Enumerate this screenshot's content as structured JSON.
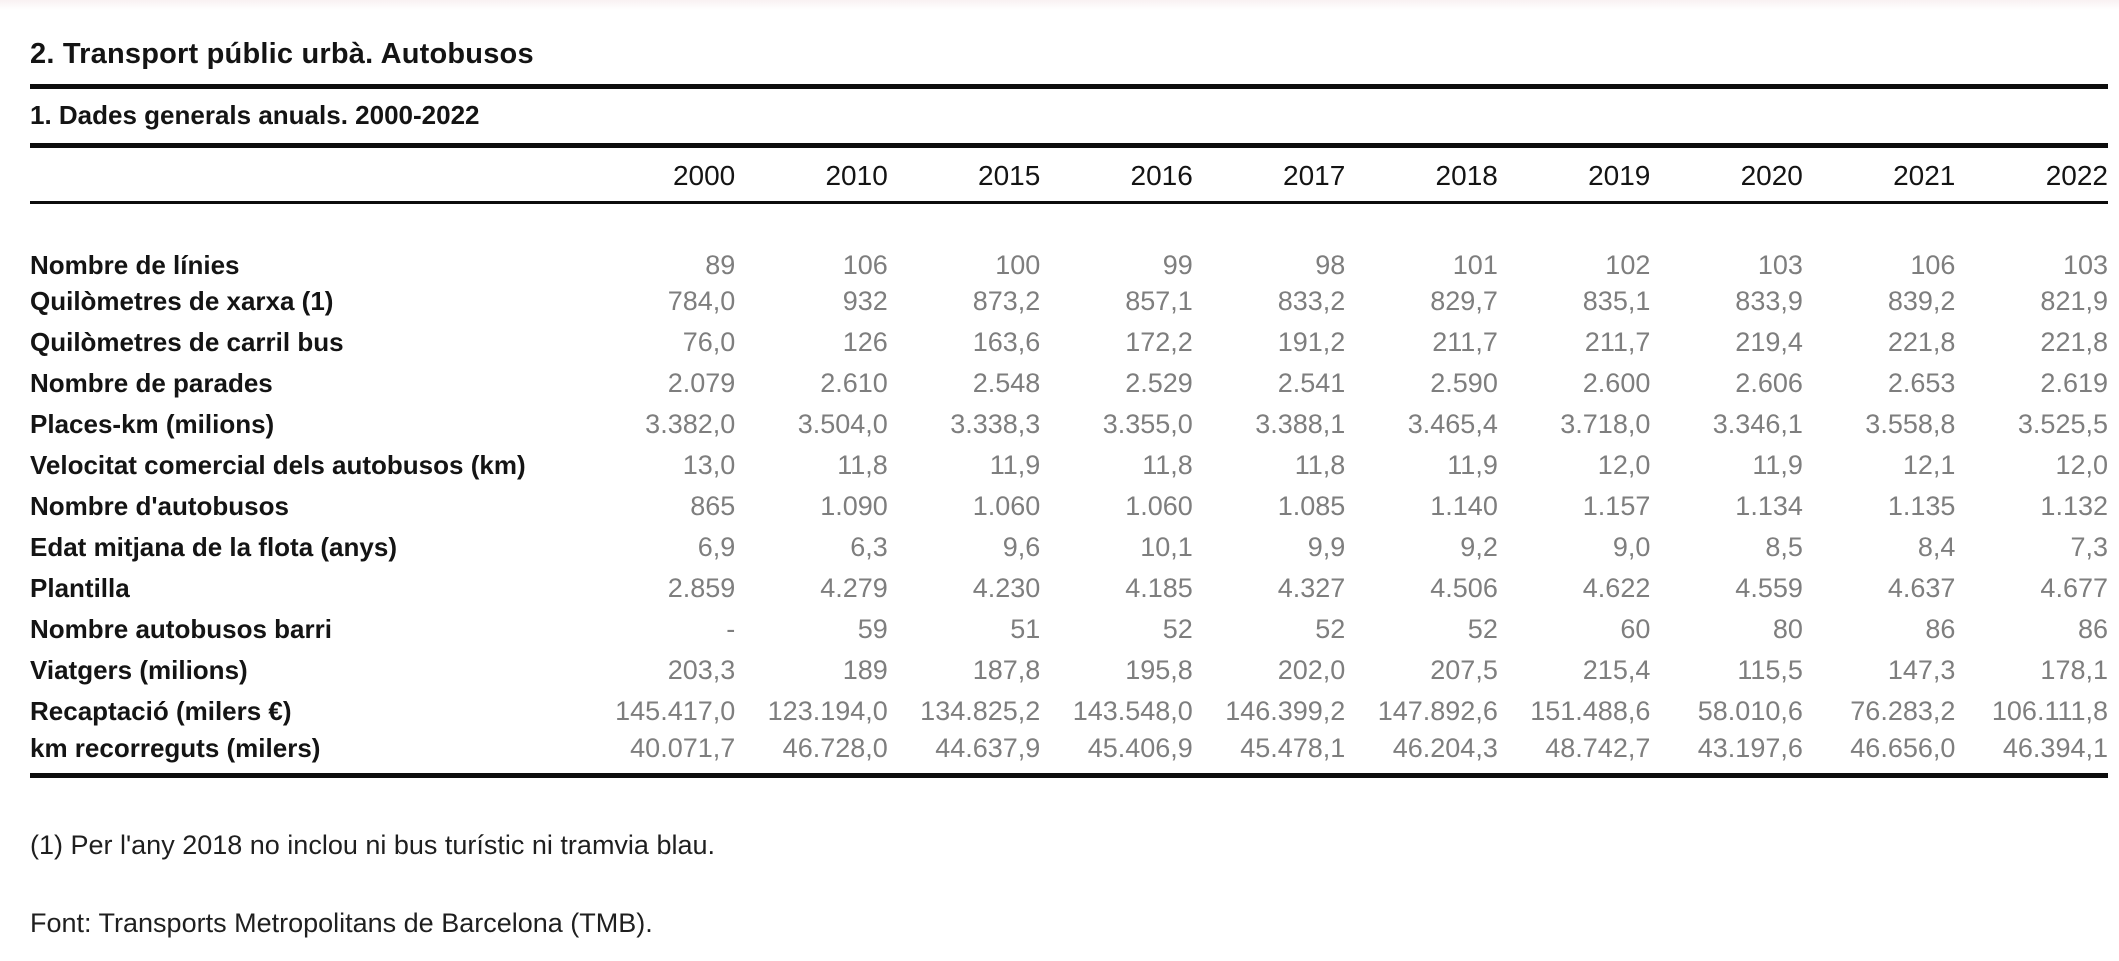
{
  "page": {
    "title": "2. Transport públic urbà. Autobusos",
    "subtitle": "1. Dades generals anuals. 2000-2022",
    "footnote": "(1) Per l'any 2018 no inclou ni bus turístic ni tramvia blau.",
    "source": "Font: Transports Metropolitans de Barcelona (TMB)."
  },
  "table": {
    "years": [
      "2000",
      "2010",
      "2015",
      "2016",
      "2017",
      "2018",
      "2019",
      "2020",
      "2021",
      "2022"
    ],
    "rows": [
      {
        "label": "Nombre de línies",
        "values": [
          "89",
          "106",
          "100",
          "99",
          "98",
          "101",
          "102",
          "103",
          "106",
          "103"
        ]
      },
      {
        "label": "Quilòmetres de xarxa (1)",
        "values": [
          "784,0",
          "932",
          "873,2",
          "857,1",
          "833,2",
          "829,7",
          "835,1",
          "833,9",
          "839,2",
          "821,9"
        ]
      },
      {
        "label": "Quilòmetres de carril bus",
        "values": [
          "76,0",
          "126",
          "163,6",
          "172,2",
          "191,2",
          "211,7",
          "211,7",
          "219,4",
          "221,8",
          "221,8"
        ]
      },
      {
        "label": "Nombre de parades",
        "values": [
          "2.079",
          "2.610",
          "2.548",
          "2.529",
          "2.541",
          "2.590",
          "2.600",
          "2.606",
          "2.653",
          "2.619"
        ]
      },
      {
        "label": "Places-km (milions)",
        "values": [
          "3.382,0",
          "3.504,0",
          "3.338,3",
          "3.355,0",
          "3.388,1",
          "3.465,4",
          "3.718,0",
          "3.346,1",
          "3.558,8",
          "3.525,5"
        ]
      },
      {
        "label": "Velocitat comercial dels autobusos (km)",
        "values": [
          "13,0",
          "11,8",
          "11,9",
          "11,8",
          "11,8",
          "11,9",
          "12,0",
          "11,9",
          "12,1",
          "12,0"
        ]
      },
      {
        "label": "Nombre d'autobusos",
        "values": [
          "865",
          "1.090",
          "1.060",
          "1.060",
          "1.085",
          "1.140",
          "1.157",
          "1.134",
          "1.135",
          "1.132"
        ]
      },
      {
        "label": "Edat mitjana de la flota (anys)",
        "values": [
          "6,9",
          "6,3",
          "9,6",
          "10,1",
          "9,9",
          "9,2",
          "9,0",
          "8,5",
          "8,4",
          "7,3"
        ]
      },
      {
        "label": "Plantilla",
        "values": [
          "2.859",
          "4.279",
          "4.230",
          "4.185",
          "4.327",
          "4.506",
          "4.622",
          "4.559",
          "4.637",
          "4.677"
        ]
      },
      {
        "label": "Nombre autobusos barri",
        "values": [
          "-",
          "59",
          "51",
          "52",
          "52",
          "52",
          "60",
          "80",
          "86",
          "86"
        ]
      },
      {
        "label": "Viatgers (milions)",
        "values": [
          "203,3",
          "189",
          "187,8",
          "195,8",
          "202,0",
          "207,5",
          "215,4",
          "115,5",
          "147,3",
          "178,1"
        ]
      },
      {
        "label": "Recaptació (milers €)",
        "values": [
          "145.417,0",
          "123.194,0",
          "134.825,2",
          "143.548,0",
          "146.399,2",
          "147.892,6",
          "151.488,6",
          "58.010,6",
          "76.283,2",
          "106.111,8"
        ]
      },
      {
        "label": "km recorreguts (milers)",
        "values": [
          "40.071,7",
          "46.728,0",
          "44.637,9",
          "45.406,9",
          "45.478,1",
          "46.204,3",
          "48.742,7",
          "43.197,6",
          "46.656,0",
          "46.394,1"
        ]
      }
    ]
  }
}
